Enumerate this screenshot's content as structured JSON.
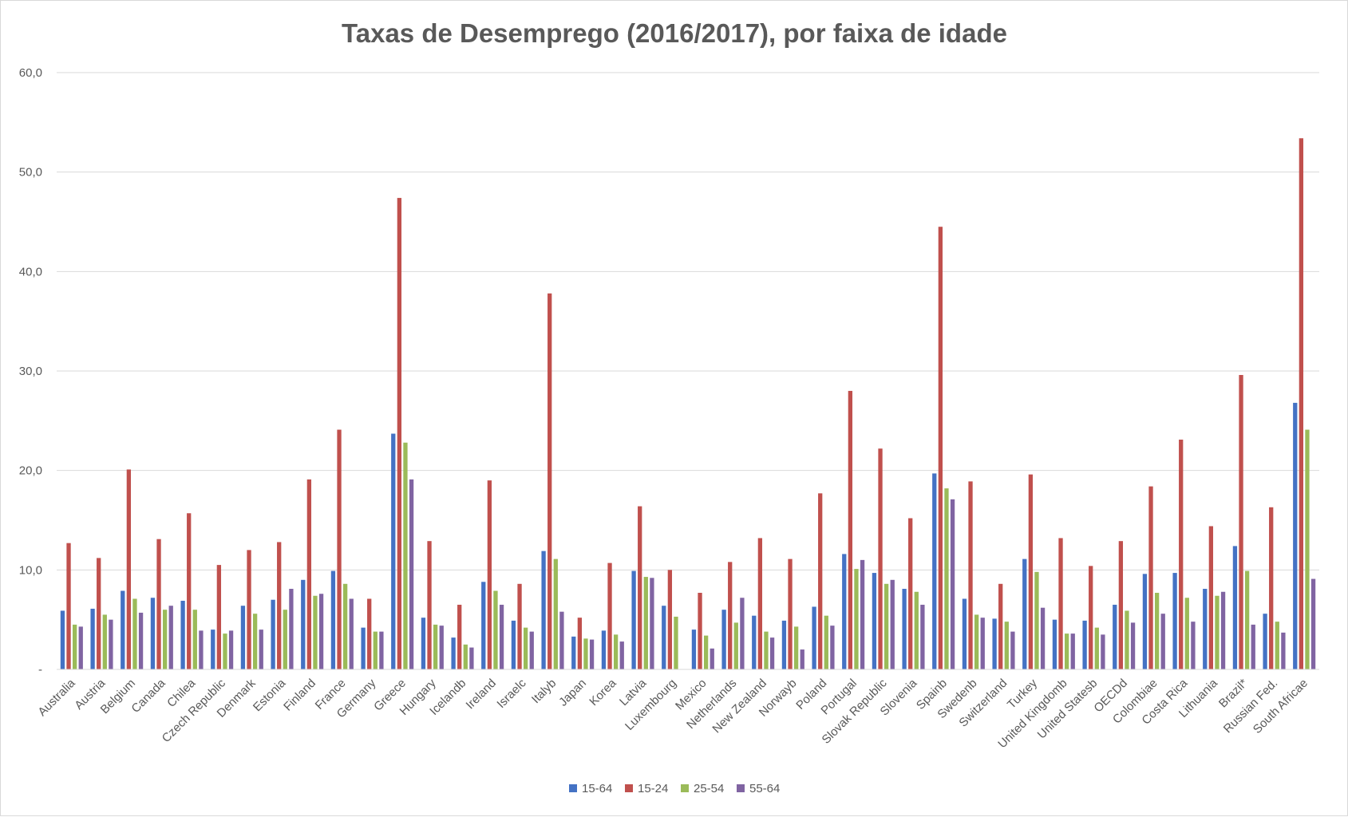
{
  "chart_data": {
    "type": "bar",
    "title": "Taxas de Desemprego (2016/2017), por faixa de idade",
    "xlabel": "",
    "ylabel": "",
    "ylim": [
      0,
      60
    ],
    "yticks": [
      {
        "value": 0,
        "label": "-"
      },
      {
        "value": 10,
        "label": "10,0"
      },
      {
        "value": 20,
        "label": "20,0"
      },
      {
        "value": 30,
        "label": "30,0"
      },
      {
        "value": 40,
        "label": "40,0"
      },
      {
        "value": 50,
        "label": "50,0"
      },
      {
        "value": 60,
        "label": "60,0"
      }
    ],
    "grid": true,
    "legend_position": "bottom",
    "categories": [
      "Australia",
      "Austria",
      "Belgium",
      "Canada",
      "Chilea",
      "Czech Republic",
      "Denmark",
      "Estonia",
      "Finland",
      "France",
      "Germany",
      "Greece",
      "Hungary",
      "Icelandb",
      "Ireland",
      "Israelc",
      "Italyb",
      "Japan",
      "Korea",
      "Latvia",
      "Luxembourg",
      "Mexico",
      "Netherlands",
      "New Zealand",
      "Norwayb",
      "Poland",
      "Portugal",
      "Slovak Republic",
      "Slovenia",
      "Spainb",
      "Swedenb",
      "Switzerland",
      "Turkey",
      "United Kingdomb",
      "United Statesb",
      "OECDd",
      "Colombiae",
      "Costa Rica",
      "Lithuania",
      "Brazil*",
      "Russian Fed.",
      "South Africae"
    ],
    "series": [
      {
        "name": "15-64",
        "color": "#4472c4",
        "values": [
          5.9,
          6.1,
          7.9,
          7.2,
          6.9,
          4.0,
          6.4,
          7.0,
          9.0,
          9.9,
          4.2,
          23.7,
          5.2,
          3.2,
          8.8,
          4.9,
          11.9,
          3.3,
          3.9,
          9.9,
          6.4,
          4.0,
          6.0,
          5.4,
          4.9,
          6.3,
          11.6,
          9.7,
          8.1,
          19.7,
          7.1,
          5.1,
          11.1,
          5.0,
          4.9,
          6.5,
          9.6,
          9.7,
          8.1,
          12.4,
          5.6,
          26.8
        ]
      },
      {
        "name": "15-24",
        "color": "#c0504d",
        "values": [
          12.7,
          11.2,
          20.1,
          13.1,
          15.7,
          10.5,
          12.0,
          12.8,
          19.1,
          24.1,
          7.1,
          47.4,
          12.9,
          6.5,
          19.0,
          8.6,
          37.8,
          5.2,
          10.7,
          16.4,
          10.0,
          7.7,
          10.8,
          13.2,
          11.1,
          17.7,
          28.0,
          22.2,
          15.2,
          44.5,
          18.9,
          8.6,
          19.6,
          13.2,
          10.4,
          12.9,
          18.4,
          23.1,
          14.4,
          29.6,
          16.3,
          53.4
        ]
      },
      {
        "name": "25-54",
        "color": "#9bbb59",
        "values": [
          4.5,
          5.5,
          7.1,
          6.0,
          6.0,
          3.6,
          5.6,
          6.0,
          7.4,
          8.6,
          3.8,
          22.8,
          4.5,
          2.5,
          7.9,
          4.2,
          11.1,
          3.1,
          3.5,
          9.3,
          5.3,
          3.4,
          4.7,
          3.8,
          4.3,
          5.4,
          10.1,
          8.6,
          7.8,
          18.2,
          5.5,
          4.8,
          9.8,
          3.6,
          4.2,
          5.9,
          7.7,
          7.2,
          7.4,
          9.9,
          4.8,
          24.1
        ]
      },
      {
        "name": "55-64",
        "color": "#8064a2",
        "values": [
          4.3,
          5.0,
          5.7,
          6.4,
          3.9,
          3.9,
          4.0,
          8.1,
          7.6,
          7.1,
          3.8,
          19.1,
          4.4,
          2.2,
          6.5,
          3.8,
          5.8,
          3.0,
          2.8,
          9.2,
          0,
          2.1,
          7.2,
          3.2,
          2.0,
          4.4,
          11.0,
          9.0,
          6.5,
          17.1,
          5.2,
          3.8,
          6.2,
          3.6,
          3.5,
          4.7,
          5.6,
          4.8,
          7.8,
          4.5,
          3.7,
          9.1
        ]
      }
    ]
  }
}
